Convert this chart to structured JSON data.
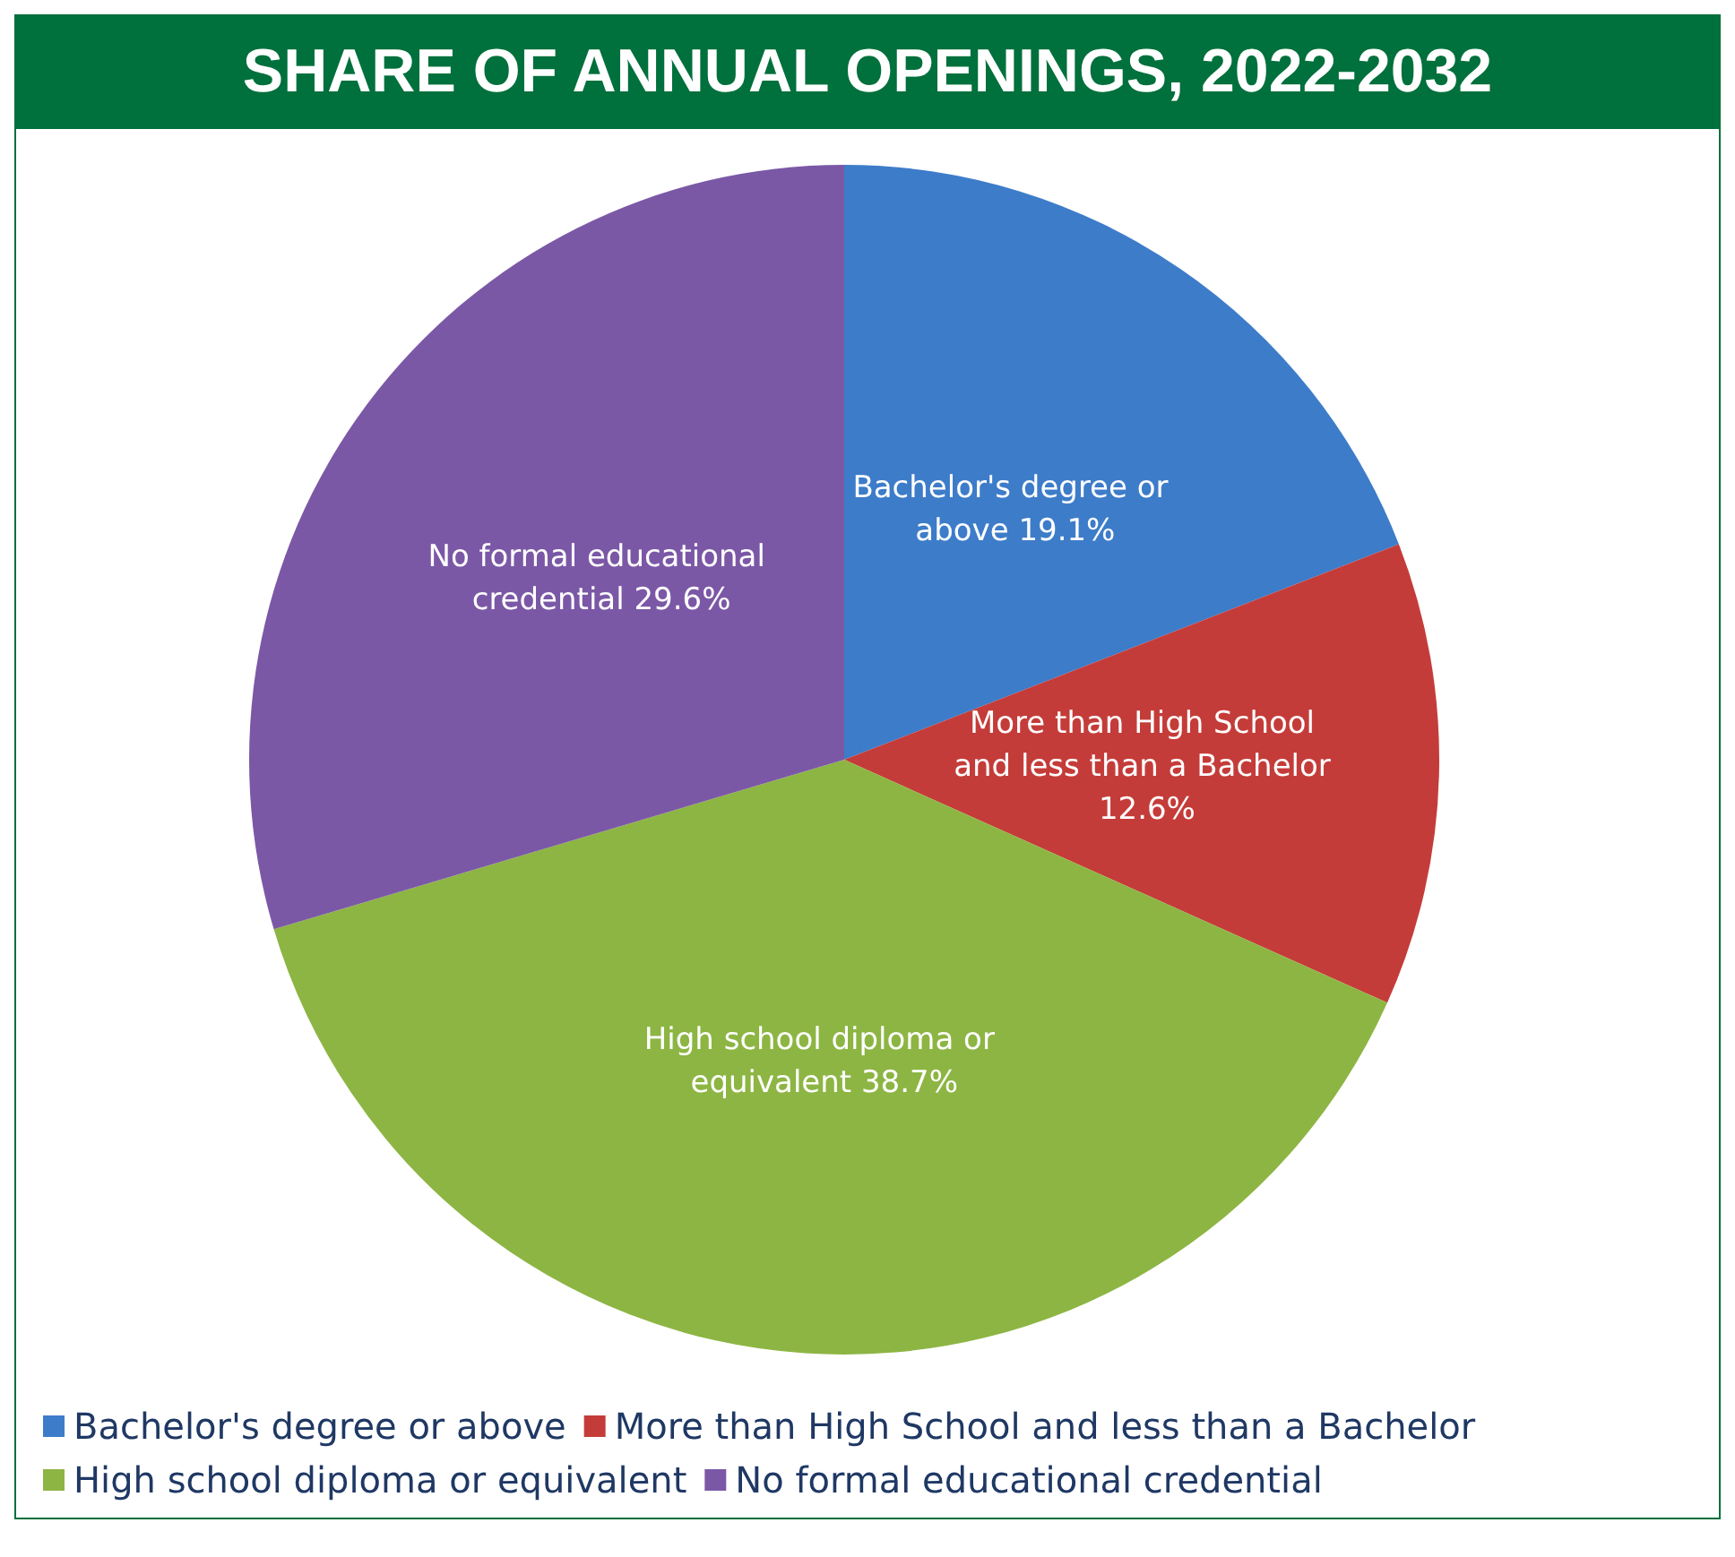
{
  "chart_data": {
    "type": "pie",
    "title": "SHARE OF ANNUAL OPENINGS, 2022-2032",
    "categories": [
      "Bachelor's degree or above",
      "More than High School and less than a Bachelor",
      "High school diploma or equivalent",
      "No formal educational credential"
    ],
    "values": [
      19.1,
      12.6,
      38.7,
      29.6
    ],
    "colors": [
      "#3d7cc9",
      "#c43c39",
      "#8db543",
      "#7b58a6"
    ],
    "value_labels": [
      "19.1%",
      "12.6%",
      "38.7%",
      "29.6%"
    ],
    "legend": "bottom"
  }
}
